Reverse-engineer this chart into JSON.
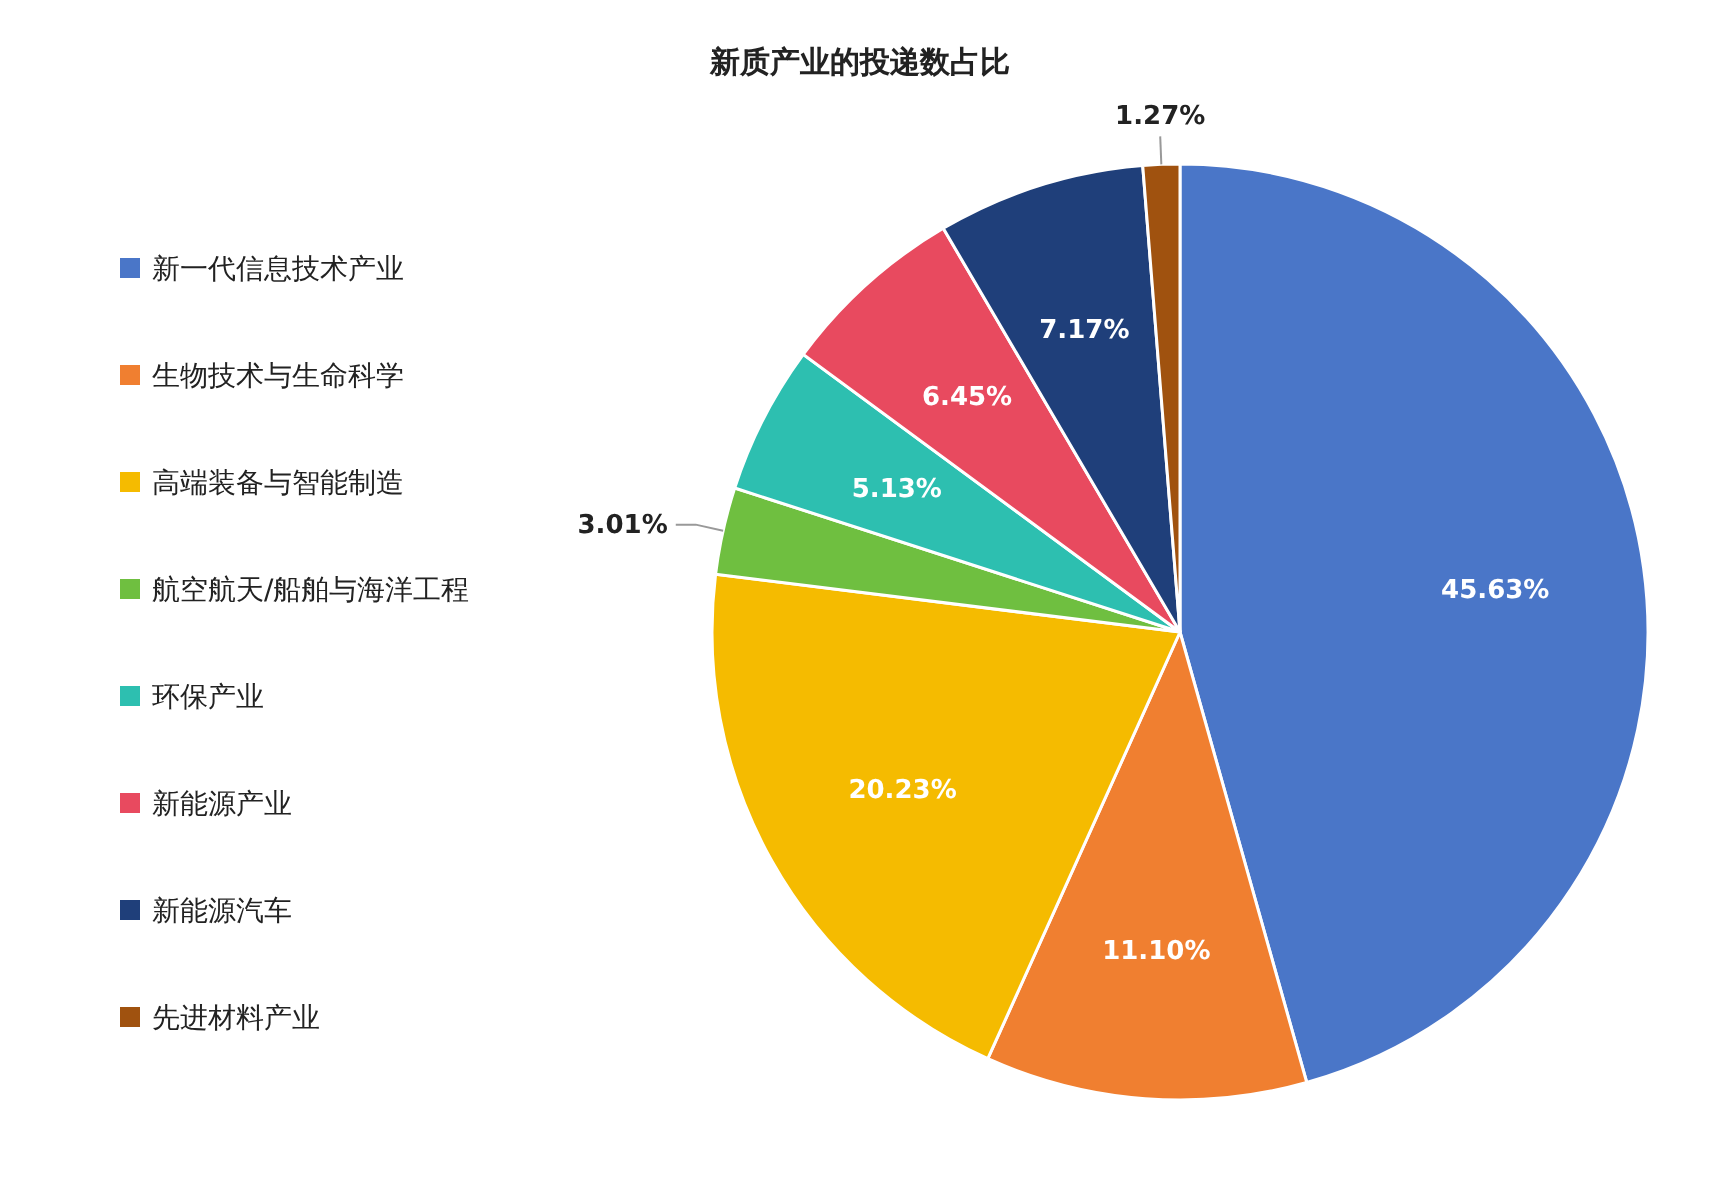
{
  "chart_data": {
    "type": "pie",
    "title": "新质产业的投递数占比",
    "categories": [
      "新一代信息技术产业",
      "生物技术与生命科学",
      "高端装备与智能制造",
      "航空航天/船舶与海洋工程",
      "环保产业",
      "新能源产业",
      "新能源汽车",
      "先进材料产业"
    ],
    "values": [
      45.63,
      11.1,
      20.23,
      3.01,
      5.13,
      6.45,
      7.17,
      1.27
    ],
    "value_labels": [
      "45.63%",
      "11.10%",
      "20.23%",
      "3.01%",
      "5.13%",
      "6.45%",
      "7.17%",
      "1.27%"
    ],
    "colors": [
      "#4a76c8",
      "#f07f30",
      "#f5bb00",
      "#6fbf40",
      "#2dbfb0",
      "#e84a5f",
      "#1f3f7a",
      "#a0520f"
    ],
    "legend": "left"
  }
}
